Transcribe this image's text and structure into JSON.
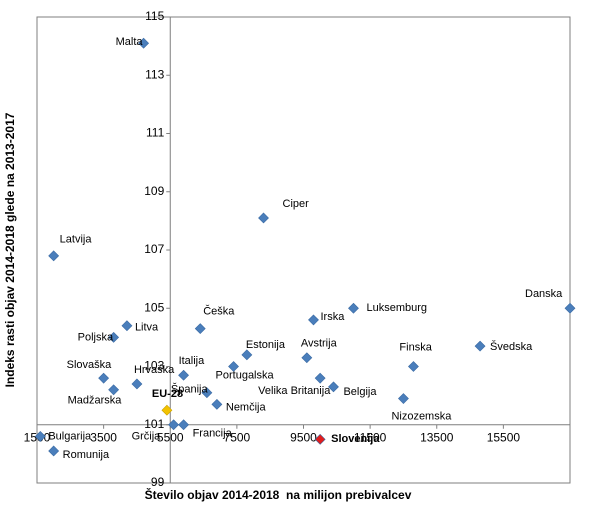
{
  "chart_data": {
    "type": "scatter",
    "xlabel": "Število objav 2014-2018  na milijon prebivalcev",
    "ylabel": "Indeks rasti objav 2014-2018 glede na 2013-2017",
    "xlim": [
      1500,
      17500
    ],
    "ylim": [
      99,
      115
    ],
    "x_ticks": [
      "1500",
      "3500",
      "5500",
      "7500",
      "9500",
      "11500",
      "13500",
      "15500"
    ],
    "y_ticks": [
      "99",
      "101",
      "103",
      "105",
      "107",
      "109",
      "111",
      "113",
      "115"
    ],
    "axes_cross": {
      "x_axis_at_y": 101,
      "y_axis_at_x": 5500
    },
    "grid": false,
    "legend": "none",
    "colors": {
      "default": "#4a7ebb",
      "eu": "#f2c200",
      "slovenia": "#e11d1d"
    },
    "points": [
      {
        "label": "Malta",
        "x": 4700,
        "y": 114.1
      },
      {
        "label": "Ciper",
        "x": 8300,
        "y": 108.1
      },
      {
        "label": "Latvija",
        "x": 2000,
        "y": 106.8
      },
      {
        "label": "Danska",
        "x": 17500,
        "y": 105.0
      },
      {
        "label": "Luksemburg",
        "x": 11000,
        "y": 105.0
      },
      {
        "label": "Irska",
        "x": 9800,
        "y": 104.6
      },
      {
        "label": "Češka",
        "x": 6400,
        "y": 104.3
      },
      {
        "label": "Litva",
        "x": 4200,
        "y": 104.4
      },
      {
        "label": "Poljska",
        "x": 3800,
        "y": 104.0
      },
      {
        "label": "Švedska",
        "x": 14800,
        "y": 103.7
      },
      {
        "label": "Avstrija",
        "x": 9600,
        "y": 103.3
      },
      {
        "label": "Estonija",
        "x": 7800,
        "y": 103.4
      },
      {
        "label": "Finska",
        "x": 12800,
        "y": 103.0
      },
      {
        "label": "Italija",
        "x": 5900,
        "y": 102.7
      },
      {
        "label": "Portugalska",
        "x": 7400,
        "y": 103.0
      },
      {
        "label": "Slovaška",
        "x": 3500,
        "y": 102.6
      },
      {
        "label": "Hrvaška",
        "x": 4500,
        "y": 102.4
      },
      {
        "label": "Velika Britanija",
        "x": 10000,
        "y": 102.6
      },
      {
        "label": "Madžarska",
        "x": 3800,
        "y": 102.2
      },
      {
        "label": "Španija",
        "x": 6600,
        "y": 102.1
      },
      {
        "label": "Belgija",
        "x": 10400,
        "y": 102.3
      },
      {
        "label": "Nemčija",
        "x": 6900,
        "y": 101.7
      },
      {
        "label": "Nizozemska",
        "x": 12500,
        "y": 101.9
      },
      {
        "label": "EU-28",
        "x": 5400,
        "y": 101.5,
        "color": "eu",
        "bold": true
      },
      {
        "label": "Grčija",
        "x": 5600,
        "y": 101.0
      },
      {
        "label": "Francija",
        "x": 5900,
        "y": 101.0
      },
      {
        "label": "Slovenija",
        "x": 10000,
        "y": 100.5,
        "color": "slovenia",
        "bold": true
      },
      {
        "label": "Bulgarija",
        "x": 1600,
        "y": 100.6
      },
      {
        "label": "Romunija",
        "x": 2000,
        "y": 100.1
      }
    ]
  }
}
